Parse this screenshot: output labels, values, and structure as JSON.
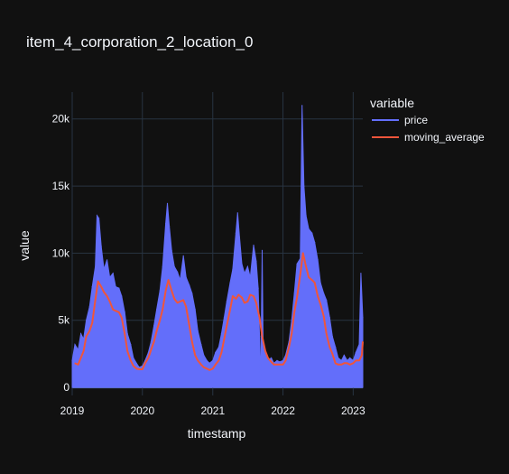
{
  "chart_data": {
    "type": "area",
    "title": "item_4_corporation_2_location_0",
    "xlabel": "timestamp",
    "ylabel": "value",
    "x_range": [
      "2019-01-01",
      "2023-02-20"
    ],
    "ylim": [
      -600,
      22000
    ],
    "x_ticks": [
      {
        "date": "2019-01-01",
        "label": "2019"
      },
      {
        "date": "2020-01-01",
        "label": "2020"
      },
      {
        "date": "2021-01-01",
        "label": "2021"
      },
      {
        "date": "2022-01-01",
        "label": "2022"
      },
      {
        "date": "2023-01-01",
        "label": "2023"
      }
    ],
    "y_ticks": [
      {
        "value": 0,
        "label": "0"
      },
      {
        "value": 5000,
        "label": "5k"
      },
      {
        "value": 10000,
        "label": "10k"
      },
      {
        "value": 15000,
        "label": "15k"
      },
      {
        "value": 20000,
        "label": "20k"
      }
    ],
    "grid": true,
    "legend": {
      "title": "variable",
      "placement": "right"
    },
    "series": [
      {
        "name": "price",
        "color": "#636efa",
        "points": [
          [
            "2019-01-01",
            2000
          ],
          [
            "2019-01-15",
            3200
          ],
          [
            "2019-02-01",
            2800
          ],
          [
            "2019-02-15",
            4000
          ],
          [
            "2019-03-01",
            3600
          ],
          [
            "2019-03-15",
            5000
          ],
          [
            "2019-04-01",
            6000
          ],
          [
            "2019-04-15",
            7500
          ],
          [
            "2019-05-01",
            9000
          ],
          [
            "2019-05-10",
            12800
          ],
          [
            "2019-05-20",
            12600
          ],
          [
            "2019-06-01",
            10500
          ],
          [
            "2019-06-15",
            8800
          ],
          [
            "2019-07-01",
            9500
          ],
          [
            "2019-07-15",
            8200
          ],
          [
            "2019-08-01",
            8500
          ],
          [
            "2019-08-15",
            7500
          ],
          [
            "2019-09-01",
            7400
          ],
          [
            "2019-09-15",
            6800
          ],
          [
            "2019-10-01",
            5600
          ],
          [
            "2019-10-15",
            4000
          ],
          [
            "2019-11-01",
            3200
          ],
          [
            "2019-11-15",
            2200
          ],
          [
            "2019-12-01",
            1800
          ],
          [
            "2019-12-15",
            1500
          ],
          [
            "2020-01-01",
            1600
          ],
          [
            "2020-01-15",
            2000
          ],
          [
            "2020-02-01",
            2600
          ],
          [
            "2020-02-15",
            3400
          ],
          [
            "2020-03-01",
            4600
          ],
          [
            "2020-03-15",
            5800
          ],
          [
            "2020-04-01",
            7200
          ],
          [
            "2020-04-15",
            9000
          ],
          [
            "2020-05-01",
            12200
          ],
          [
            "2020-05-10",
            13700
          ],
          [
            "2020-05-20",
            12000
          ],
          [
            "2020-06-01",
            10200
          ],
          [
            "2020-06-15",
            9000
          ],
          [
            "2020-07-01",
            8600
          ],
          [
            "2020-07-15",
            8000
          ],
          [
            "2020-08-01",
            9800
          ],
          [
            "2020-08-15",
            8200
          ],
          [
            "2020-09-01",
            7600
          ],
          [
            "2020-09-15",
            7000
          ],
          [
            "2020-10-01",
            5800
          ],
          [
            "2020-10-15",
            4200
          ],
          [
            "2020-11-01",
            3200
          ],
          [
            "2020-11-15",
            2400
          ],
          [
            "2020-12-01",
            2000
          ],
          [
            "2020-12-15",
            1800
          ],
          [
            "2021-01-01",
            2000
          ],
          [
            "2021-01-15",
            2600
          ],
          [
            "2021-02-01",
            3000
          ],
          [
            "2021-02-15",
            4000
          ],
          [
            "2021-03-01",
            5200
          ],
          [
            "2021-03-15",
            6400
          ],
          [
            "2021-04-01",
            7800
          ],
          [
            "2021-04-15",
            8800
          ],
          [
            "2021-05-01",
            11500
          ],
          [
            "2021-05-10",
            13000
          ],
          [
            "2021-05-20",
            11200
          ],
          [
            "2021-06-01",
            9200
          ],
          [
            "2021-06-15",
            8500
          ],
          [
            "2021-07-01",
            9000
          ],
          [
            "2021-07-15",
            8200
          ],
          [
            "2021-08-01",
            10600
          ],
          [
            "2021-08-15",
            9400
          ],
          [
            "2021-08-25",
            7400
          ],
          [
            "2021-09-01",
            3800
          ],
          [
            "2021-09-05",
            500
          ],
          [
            "2021-09-10",
            4000
          ],
          [
            "2021-09-15",
            10200
          ],
          [
            "2021-09-20",
            3000
          ],
          [
            "2021-10-01",
            2500
          ],
          [
            "2021-10-15",
            2000
          ],
          [
            "2021-11-01",
            2200
          ],
          [
            "2021-11-15",
            1800
          ],
          [
            "2021-12-01",
            2000
          ],
          [
            "2021-12-15",
            1900
          ],
          [
            "2022-01-01",
            2000
          ],
          [
            "2022-01-15",
            2400
          ],
          [
            "2022-02-01",
            3400
          ],
          [
            "2022-02-15",
            5000
          ],
          [
            "2022-03-01",
            7000
          ],
          [
            "2022-03-15",
            9200
          ],
          [
            "2022-04-01",
            9600
          ],
          [
            "2022-04-10",
            21000
          ],
          [
            "2022-04-20",
            15000
          ],
          [
            "2022-05-01",
            12800
          ],
          [
            "2022-05-15",
            11800
          ],
          [
            "2022-06-01",
            11500
          ],
          [
            "2022-06-15",
            10800
          ],
          [
            "2022-07-01",
            9500
          ],
          [
            "2022-07-15",
            7800
          ],
          [
            "2022-08-01",
            7000
          ],
          [
            "2022-08-15",
            6500
          ],
          [
            "2022-09-01",
            5200
          ],
          [
            "2022-09-15",
            3800
          ],
          [
            "2022-10-01",
            3000
          ],
          [
            "2022-10-15",
            2200
          ],
          [
            "2022-11-01",
            2000
          ],
          [
            "2022-11-15",
            2400
          ],
          [
            "2022-12-01",
            2000
          ],
          [
            "2022-12-15",
            2200
          ],
          [
            "2023-01-01",
            2000
          ],
          [
            "2023-01-15",
            2600
          ],
          [
            "2023-02-01",
            3200
          ],
          [
            "2023-02-10",
            8500
          ],
          [
            "2023-02-20",
            5200
          ]
        ]
      },
      {
        "name": "moving_average",
        "color": "#ef553b",
        "points": [
          [
            "2019-01-15",
            1800
          ],
          [
            "2019-02-01",
            1700
          ],
          [
            "2019-02-15",
            2200
          ],
          [
            "2019-03-01",
            2700
          ],
          [
            "2019-03-15",
            3800
          ],
          [
            "2019-04-01",
            4200
          ],
          [
            "2019-04-15",
            4800
          ],
          [
            "2019-05-01",
            6500
          ],
          [
            "2019-05-15",
            7900
          ],
          [
            "2019-06-01",
            7500
          ],
          [
            "2019-06-15",
            7100
          ],
          [
            "2019-07-01",
            6800
          ],
          [
            "2019-07-15",
            6400
          ],
          [
            "2019-08-01",
            5800
          ],
          [
            "2019-08-15",
            5700
          ],
          [
            "2019-09-01",
            5600
          ],
          [
            "2019-09-15",
            5200
          ],
          [
            "2019-10-01",
            4000
          ],
          [
            "2019-10-15",
            2700
          ],
          [
            "2019-11-01",
            2000
          ],
          [
            "2019-11-15",
            1600
          ],
          [
            "2019-12-01",
            1400
          ],
          [
            "2019-12-15",
            1350
          ],
          [
            "2020-01-01",
            1350
          ],
          [
            "2020-01-15",
            1800
          ],
          [
            "2020-02-01",
            2200
          ],
          [
            "2020-02-15",
            2800
          ],
          [
            "2020-03-01",
            3400
          ],
          [
            "2020-03-15",
            4200
          ],
          [
            "2020-04-01",
            5000
          ],
          [
            "2020-04-15",
            5800
          ],
          [
            "2020-05-01",
            7200
          ],
          [
            "2020-05-15",
            8000
          ],
          [
            "2020-06-01",
            7200
          ],
          [
            "2020-06-15",
            6600
          ],
          [
            "2020-07-01",
            6300
          ],
          [
            "2020-07-15",
            6400
          ],
          [
            "2020-08-01",
            6500
          ],
          [
            "2020-08-15",
            6000
          ],
          [
            "2020-09-01",
            4600
          ],
          [
            "2020-09-15",
            3400
          ],
          [
            "2020-10-01",
            2400
          ],
          [
            "2020-10-15",
            2000
          ],
          [
            "2020-11-01",
            1700
          ],
          [
            "2020-11-15",
            1500
          ],
          [
            "2020-12-01",
            1400
          ],
          [
            "2020-12-15",
            1300
          ],
          [
            "2021-01-01",
            1400
          ],
          [
            "2021-01-15",
            1700
          ],
          [
            "2021-02-01",
            2000
          ],
          [
            "2021-02-15",
            2600
          ],
          [
            "2021-03-01",
            3600
          ],
          [
            "2021-03-15",
            4600
          ],
          [
            "2021-04-01",
            5800
          ],
          [
            "2021-04-15",
            6800
          ],
          [
            "2021-05-01",
            6600
          ],
          [
            "2021-05-15",
            6900
          ],
          [
            "2021-06-01",
            6700
          ],
          [
            "2021-06-15",
            6300
          ],
          [
            "2021-07-01",
            6400
          ],
          [
            "2021-07-15",
            6900
          ],
          [
            "2021-08-01",
            6800
          ],
          [
            "2021-08-15",
            6300
          ],
          [
            "2021-09-01",
            5200
          ],
          [
            "2021-09-15",
            3800
          ],
          [
            "2021-10-01",
            2700
          ],
          [
            "2021-10-15",
            2200
          ],
          [
            "2021-11-01",
            1900
          ],
          [
            "2021-11-15",
            1700
          ],
          [
            "2021-12-01",
            1700
          ],
          [
            "2021-12-15",
            1700
          ],
          [
            "2022-01-01",
            1700
          ],
          [
            "2022-01-15",
            2000
          ],
          [
            "2022-02-01",
            3000
          ],
          [
            "2022-02-15",
            4000
          ],
          [
            "2022-03-01",
            5600
          ],
          [
            "2022-03-15",
            6700
          ],
          [
            "2022-04-01",
            8400
          ],
          [
            "2022-04-15",
            10000
          ],
          [
            "2022-05-01",
            9000
          ],
          [
            "2022-05-15",
            8200
          ],
          [
            "2022-06-01",
            8000
          ],
          [
            "2022-06-15",
            7800
          ],
          [
            "2022-07-01",
            6800
          ],
          [
            "2022-07-15",
            6200
          ],
          [
            "2022-08-01",
            5300
          ],
          [
            "2022-08-15",
            4000
          ],
          [
            "2022-09-01",
            3000
          ],
          [
            "2022-09-15",
            2500
          ],
          [
            "2022-10-01",
            1800
          ],
          [
            "2022-10-15",
            1700
          ],
          [
            "2022-11-01",
            1700
          ],
          [
            "2022-11-15",
            1800
          ],
          [
            "2022-12-01",
            1800
          ],
          [
            "2022-12-15",
            1700
          ],
          [
            "2023-01-01",
            1800
          ],
          [
            "2023-01-15",
            2000
          ],
          [
            "2023-02-01",
            2000
          ],
          [
            "2023-02-15",
            2400
          ],
          [
            "2023-02-20",
            3400
          ]
        ]
      }
    ]
  }
}
